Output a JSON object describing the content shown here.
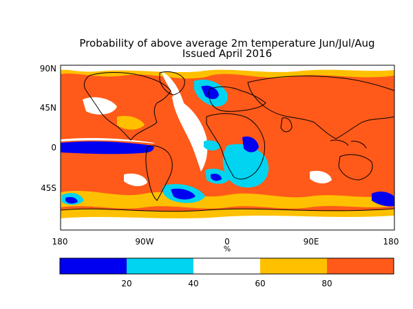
{
  "title": {
    "line1": "Probability of above average 2m temperature Jun/Jul/Aug",
    "line2": "Issued April 2016"
  },
  "map": {
    "lat_labels": [
      "90N",
      "45N",
      "0",
      "45S"
    ],
    "lon_labels": [
      "180",
      "90W",
      "0",
      "90E",
      "180"
    ],
    "unit_label": "%"
  },
  "colorbar": {
    "labels": [
      "20",
      "40",
      "60",
      "80"
    ],
    "colors": [
      "#0000f0",
      "#00d4f0",
      "#ffffff",
      "#ffc000",
      "#ff5a1a"
    ],
    "bins": [
      "0-20",
      "20-40",
      "40-60",
      "60-80",
      "80-100"
    ]
  },
  "colors": {
    "above_high": "#ff5a1a",
    "above_mid": "#ffc000",
    "neutral": "#ffffff",
    "below_mid": "#00d4f0",
    "below_high": "#0000f0",
    "coastline": "#000000"
  }
}
